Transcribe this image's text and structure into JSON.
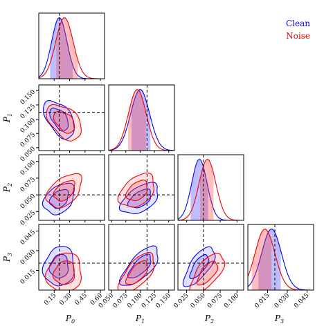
{
  "chart_data": {
    "type": "corner",
    "parameters": [
      {
        "label": "P",
        "subscript": "0",
        "range": [
          0.0,
          0.64
        ],
        "ticks": [
          "0.15",
          "0.30",
          "0.45",
          "0.60"
        ],
        "tick_values": [
          0.15,
          0.3,
          0.45,
          0.6
        ],
        "truth": 0.2
      },
      {
        "label": "P",
        "subscript": "1",
        "range": [
          0.045,
          0.16
        ],
        "ticks": [
          "0.050",
          "0.075",
          "0.100",
          "0.125",
          "0.150"
        ],
        "tick_values": [
          0.05,
          0.075,
          0.1,
          0.125,
          0.15
        ],
        "truth": 0.112
      },
      {
        "label": "P",
        "subscript": "2",
        "range": [
          0.012,
          0.11
        ],
        "ticks": [
          "0.025",
          "0.050",
          "0.075",
          "0.100"
        ],
        "tick_values": [
          0.025,
          0.05,
          0.075,
          0.1
        ],
        "truth": 0.05
      },
      {
        "label": "P",
        "subscript": "3",
        "range": [
          0.0,
          0.05
        ],
        "ticks": [
          "0.015",
          "0.030",
          "0.045"
        ],
        "tick_values": [
          0.015,
          0.03,
          0.045
        ],
        "truth": 0.0205
      }
    ],
    "series": [
      {
        "name": "Clean",
        "color": "#0000ee",
        "fill": "#4444ff",
        "means": [
          0.2,
          0.1,
          0.044,
          0.018
        ],
        "sds": [
          0.075,
          0.0165,
          0.0115,
          0.0075
        ],
        "band_lo": [
          0.11,
          0.085,
          0.031,
          0.008
        ],
        "band_hi": [
          0.33,
          0.118,
          0.057,
          0.025
        ],
        "correlations": {
          "1-0": -0.5,
          "2-0": 0.35,
          "2-1": 0.5,
          "3-0": 0.1,
          "3-1": 0.7,
          "3-2": 0.7
        }
      },
      {
        "name": "Noise",
        "color": "#ee0000",
        "fill": "#ff4444",
        "means": [
          0.25,
          0.095,
          0.056,
          0.013
        ],
        "sds": [
          0.085,
          0.0155,
          0.0125,
          0.0075
        ],
        "band_lo": [
          0.17,
          0.079,
          0.045,
          0.003
        ],
        "band_hi": [
          0.38,
          0.11,
          0.065,
          0.018
        ],
        "correlations": {
          "1-0": -0.45,
          "2-0": 0.45,
          "2-1": 0.4,
          "3-0": 0.1,
          "3-1": 0.65,
          "3-2": 0.65
        }
      }
    ],
    "legend": {
      "placement": "top-right",
      "entries": [
        "Clean",
        "Noise"
      ]
    },
    "truth_lines": "dashed black",
    "grid": false
  }
}
